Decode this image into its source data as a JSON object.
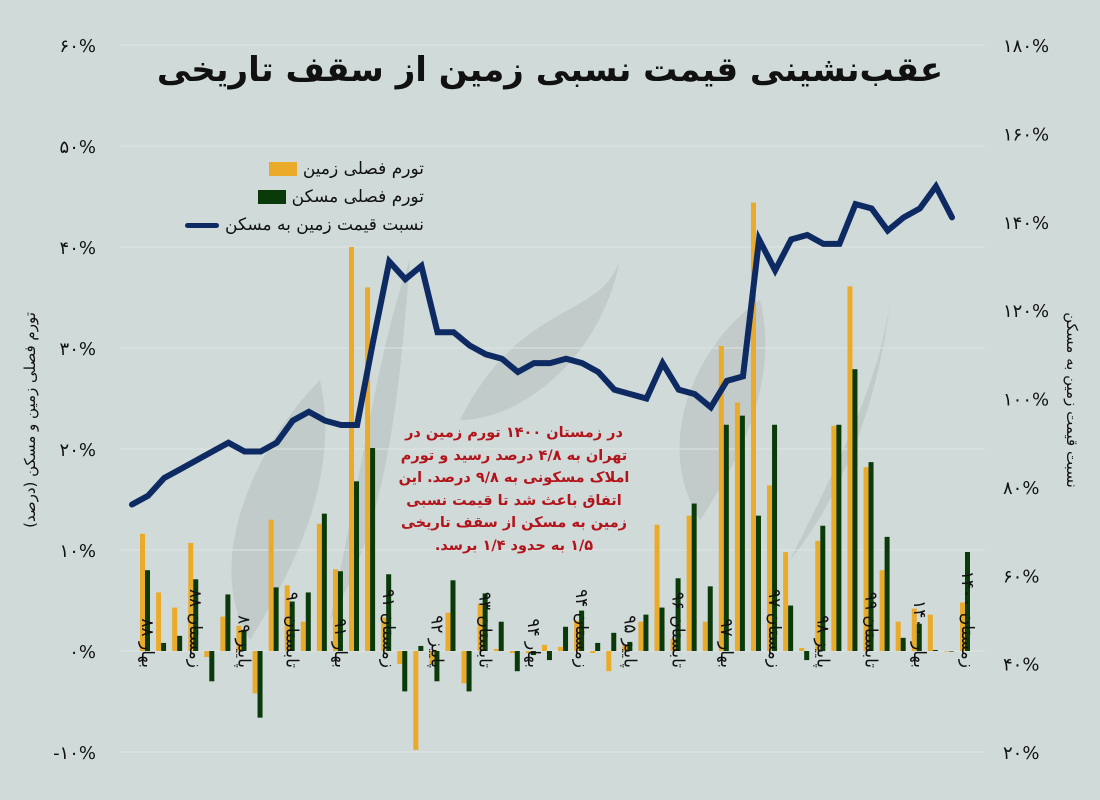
{
  "title": "عقب‌نشینی قیمت نسبی زمین از سقف تاریخی",
  "legend": [
    {
      "label": "تورم فصلی زمین",
      "color": "#eaaa2a",
      "kind": "bar"
    },
    {
      "label": "تورم فصلی مسکن",
      "color": "#0b3a0a",
      "kind": "bar"
    },
    {
      "label": "نسبت قیمت زمین به مسکن",
      "color": "#0e2a63",
      "kind": "line"
    }
  ],
  "axis_left_title": "تورم فصلی زمین و مسکن (درصد)",
  "axis_right_title": "نسبت قیمت زمین به مسکن",
  "note": "در زمستان ۱۴۰۰ تورم زمین در تهران به ۴/۸ درصد رسید و تورم املاک مسکونی به ۹/۸ درصد. این اتفاق باعث شد تا قیمت نسبی زمین به مسکن از سقف تاریخی ۱/۵ به حدود ۱/۴ برسد.",
  "colors": {
    "background": "#d0dad9",
    "land": "#eaaa2a",
    "housing": "#0b3a0a",
    "ratio": "#0e2a63",
    "note": "#b3141b",
    "grid": "#dfe6e5"
  },
  "chart_data": {
    "type": "bar+line",
    "title": "عقب‌نشینی قیمت نسبی زمین از سقف تاریخی",
    "xlabel": "",
    "ylabel": "تورم فصلی زمین و مسکن (درصد)",
    "y2label": "نسبت قیمت زمین به مسکن",
    "ylim": [
      -10,
      60
    ],
    "y2lim": [
      20,
      180
    ],
    "left_ticks": [
      "-۱۰%",
      "۰%",
      "۱۰%",
      "۲۰%",
      "۳۰%",
      "۴۰%",
      "۵۰%",
      "۶۰%"
    ],
    "left_tick_values": [
      -10,
      0,
      10,
      20,
      30,
      40,
      50,
      60
    ],
    "right_ticks": [
      "۲۰%",
      "۴۰%",
      "۶۰%",
      "۸۰%",
      "۱۰۰%",
      "۱۲۰%",
      "۱۴۰%",
      "۱۶۰%",
      "۱۸۰%"
    ],
    "right_tick_values": [
      20,
      40,
      60,
      80,
      100,
      120,
      140,
      160,
      180
    ],
    "x_tick_labels": [
      {
        "index": 0,
        "label": "بهار ۸۸"
      },
      {
        "index": 3,
        "label": "زمستان ۸۸"
      },
      {
        "index": 6,
        "label": "پاییز ۸۹"
      },
      {
        "index": 9,
        "label": "تابستان ۹۰"
      },
      {
        "index": 12,
        "label": "بهار ۹۱"
      },
      {
        "index": 15,
        "label": "زمستان ۹۱"
      },
      {
        "index": 18,
        "label": "پاییز ۹۲"
      },
      {
        "index": 21,
        "label": "تابستان ۹۳"
      },
      {
        "index": 24,
        "label": "بهار ۹۴"
      },
      {
        "index": 27,
        "label": "زمستان ۹۴"
      },
      {
        "index": 30,
        "label": "پاییز ۹۵"
      },
      {
        "index": 33,
        "label": "تابستان ۹۶"
      },
      {
        "index": 36,
        "label": "بهار ۹۷"
      },
      {
        "index": 39,
        "label": "زمستان ۹۷"
      },
      {
        "index": 42,
        "label": "پاییز ۹۸"
      },
      {
        "index": 45,
        "label": "تابستان ۹۹"
      },
      {
        "index": 48,
        "label": "بهار ۱۴۰۰"
      },
      {
        "index": 51,
        "label": "زمستان ۱۴۰۰"
      }
    ],
    "series": [
      {
        "name": "تورم فصلی زمین",
        "axis": "left",
        "type": "bar",
        "values": [
          11.6,
          5.8,
          4.3,
          10.7,
          -0.6,
          3.4,
          2.5,
          -4.2,
          13.0,
          6.5,
          2.9,
          12.6,
          8.1,
          40.0,
          36.0,
          3.3,
          -1.3,
          -9.8,
          -1.3,
          3.8,
          -3.2,
          4.7,
          0.2,
          -0.2,
          -0.2,
          0.6,
          0.4,
          3.0,
          -0.2,
          -2.0,
          0.6,
          2.9,
          12.5,
          1.2,
          13.4,
          2.9,
          30.2,
          24.6,
          44.4,
          16.4,
          9.8,
          0.3,
          10.9,
          22.3,
          36.1,
          18.2,
          8.0,
          2.9,
          4.2,
          3.6,
          0.0,
          4.8
        ]
      },
      {
        "name": "تورم فصلی مسکن",
        "axis": "left",
        "type": "bar",
        "values": [
          8.0,
          0.8,
          1.5,
          7.1,
          -3.0,
          5.6,
          2.1,
          -6.6,
          6.3,
          4.9,
          5.8,
          13.6,
          7.9,
          16.8,
          20.1,
          7.6,
          -4.0,
          0.5,
          -3.0,
          7.0,
          -4.0,
          5.7,
          2.9,
          -2.0,
          -0.4,
          -0.9,
          2.4,
          4.0,
          0.8,
          1.8,
          0.9,
          3.6,
          4.3,
          7.2,
          14.6,
          6.4,
          22.4,
          23.3,
          13.4,
          22.4,
          4.5,
          -0.9,
          12.4,
          22.4,
          27.9,
          18.7,
          11.3,
          1.3,
          2.7,
          0.1,
          0.0,
          9.8
        ]
      },
      {
        "name": "نسبت قیمت زمین به مسکن",
        "axis": "right",
        "type": "line",
        "values": [
          76,
          78,
          82,
          84,
          86,
          88,
          90,
          88,
          88,
          90,
          95,
          97,
          95,
          94,
          94,
          113,
          131,
          127,
          130,
          115,
          115,
          112,
          110,
          109,
          106,
          108,
          108,
          109,
          108,
          106,
          102,
          101,
          100,
          108,
          102,
          101,
          98,
          104,
          105,
          136,
          129,
          136,
          137,
          135,
          135,
          144,
          143,
          138,
          141,
          143,
          148,
          141
        ]
      }
    ],
    "legend_position": "top-left",
    "grid": true
  }
}
